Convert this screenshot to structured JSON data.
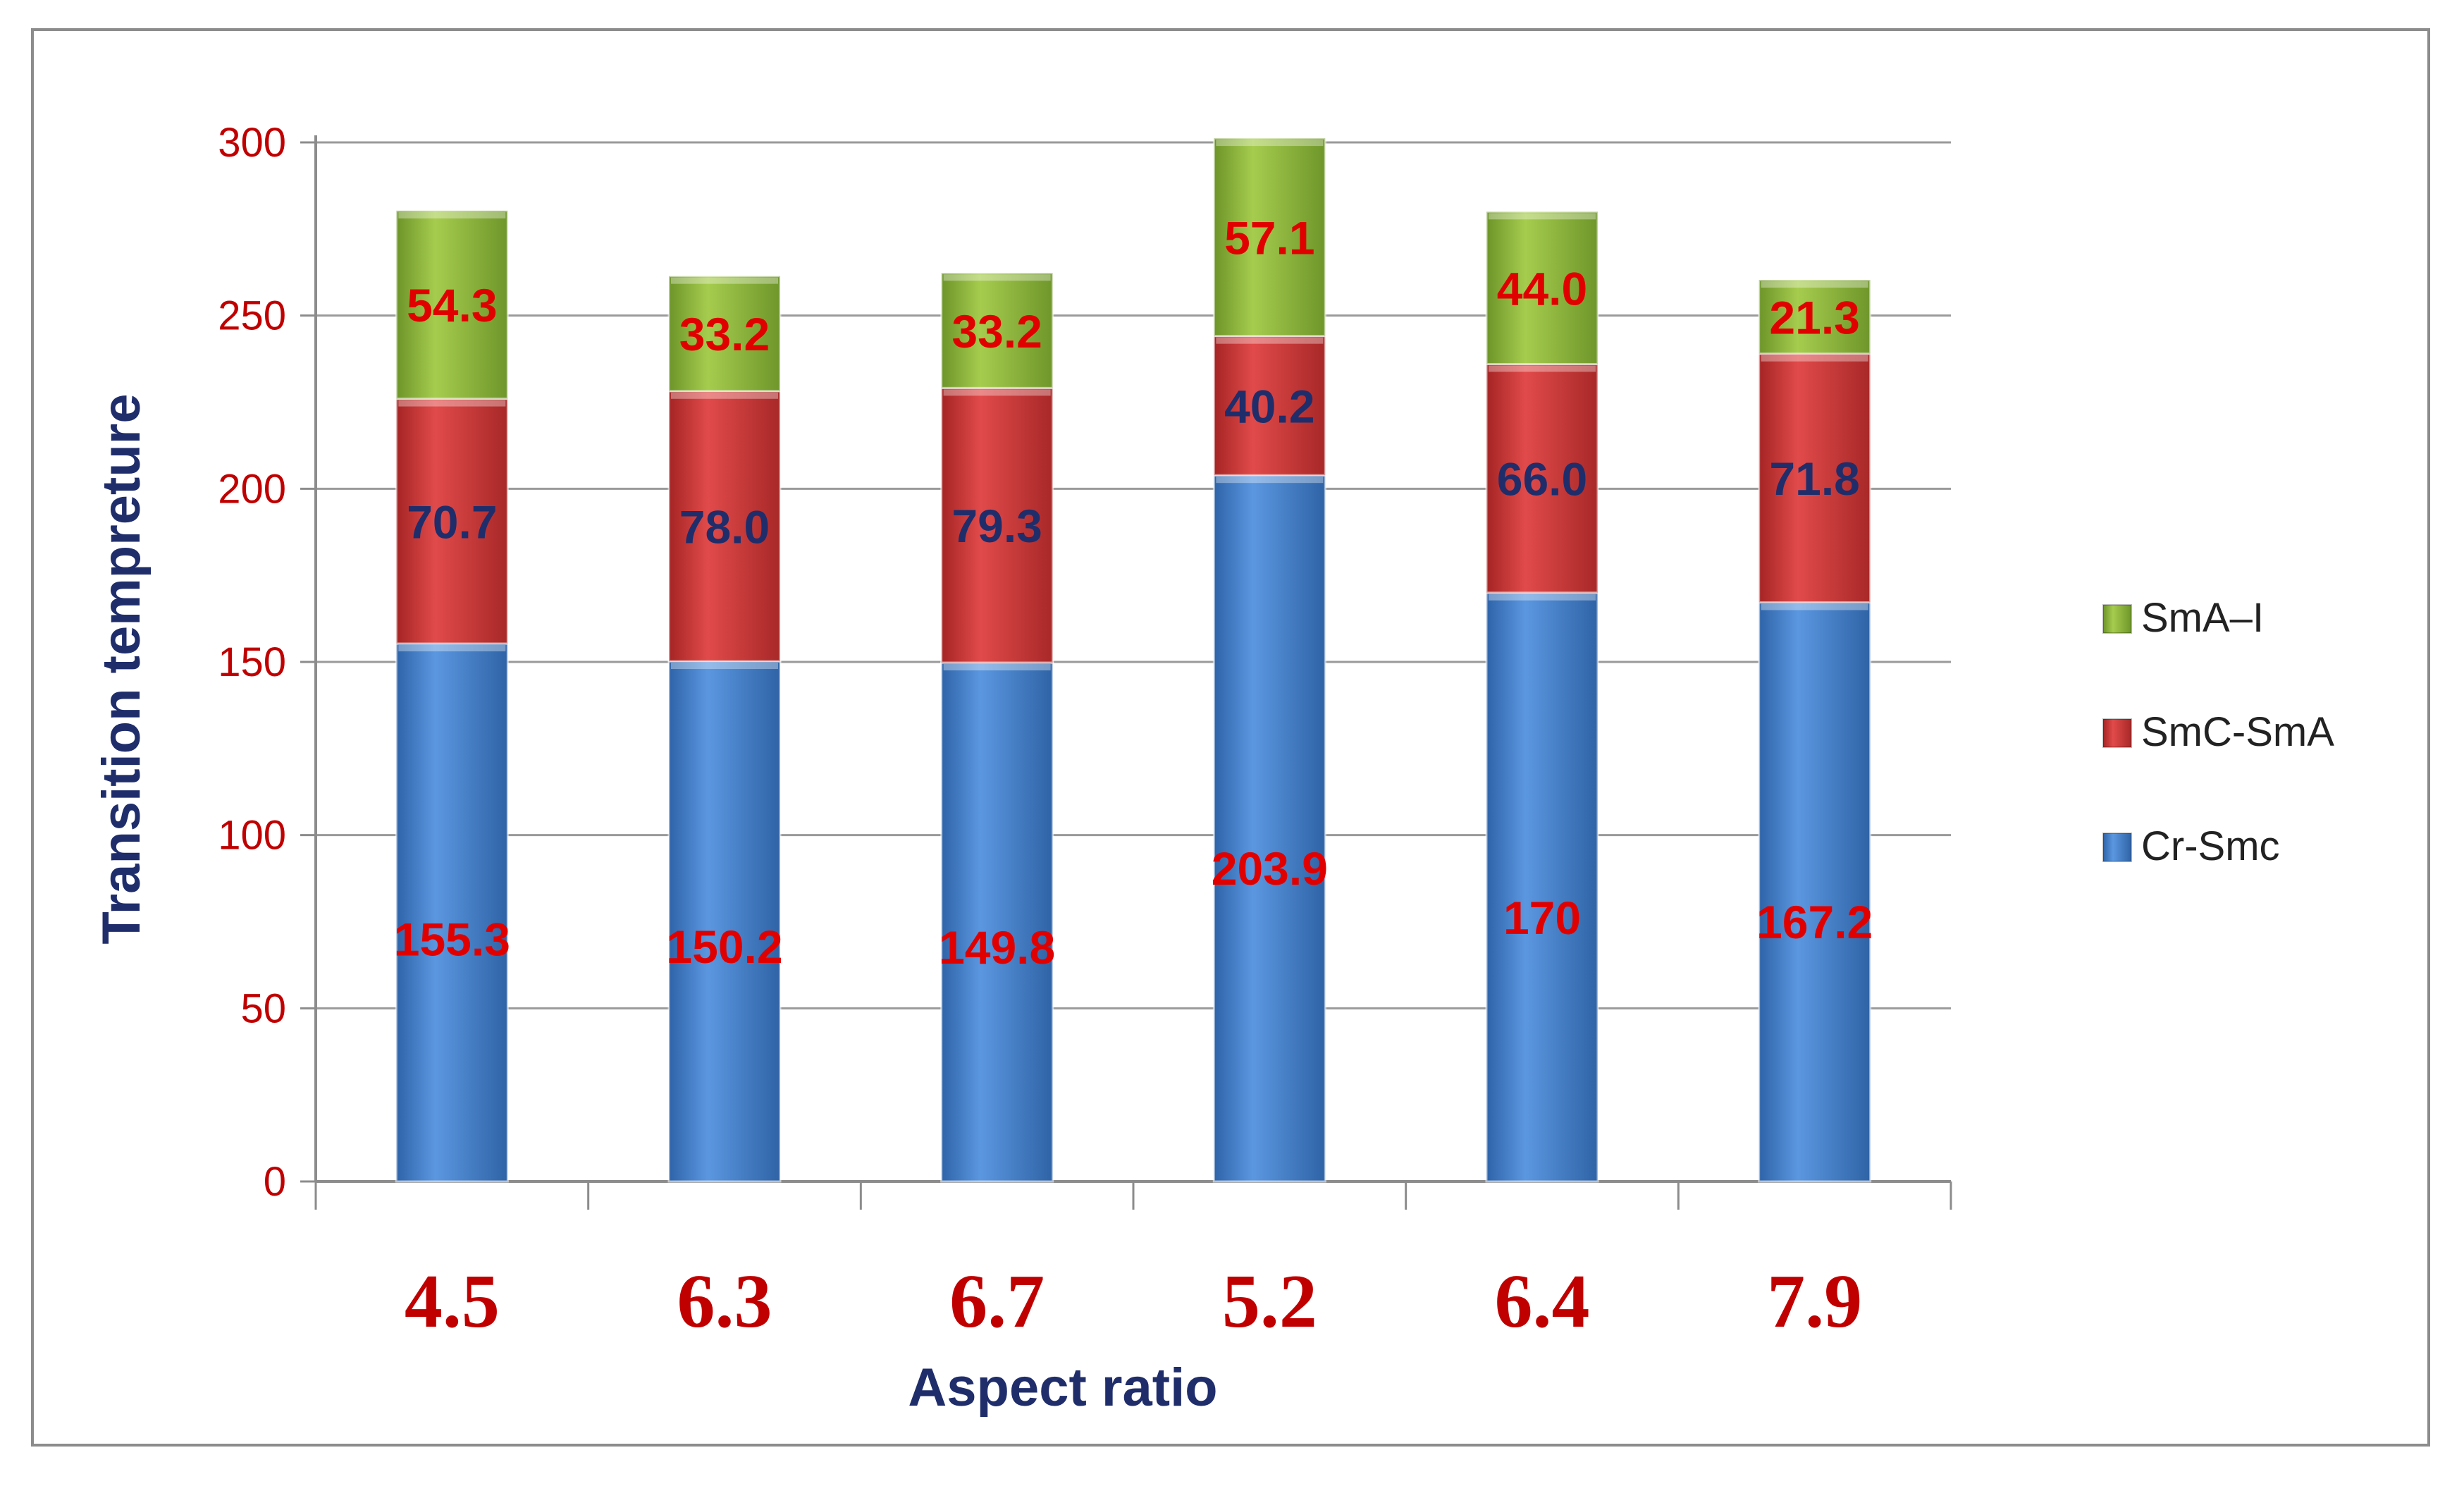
{
  "chart_data": {
    "type": "bar",
    "stacked": true,
    "title": "",
    "xlabel": "Aspect ratio",
    "ylabel": "Transition tempreture",
    "ylim": [
      0,
      300
    ],
    "yticks": [
      0,
      50,
      100,
      150,
      200,
      250,
      300
    ],
    "grid": true,
    "legend_position": "right",
    "categories": [
      "4.5",
      "6.3",
      "6.7",
      "5.2",
      "6.4",
      "7.9"
    ],
    "series": [
      {
        "name": "Cr-Smc",
        "values": [
          155.3,
          150.2,
          149.8,
          203.9,
          170,
          167.2
        ],
        "labels": [
          "155.3",
          "150.2",
          "149.8",
          "203.9",
          "170",
          "167.2"
        ],
        "color": "#4a86d4",
        "label_color": "#e00000"
      },
      {
        "name": "SmC-SmA",
        "values": [
          70.7,
          78.0,
          79.3,
          40.2,
          66.0,
          71.8
        ],
        "labels": [
          "70.7",
          "78.0",
          "79.3",
          "40.2",
          "66.0",
          "71.8"
        ],
        "color": "#d63a3a",
        "label_color": "#1f2d6b"
      },
      {
        "name": "SmA–I",
        "values": [
          54.3,
          33.2,
          33.2,
          57.1,
          44.0,
          21.3
        ],
        "labels": [
          "54.3",
          "33.2",
          "33.2",
          "57.1",
          "44.0",
          "21.3"
        ],
        "color": "#8fbb3a",
        "label_color": "#e00000"
      }
    ],
    "legend_order": [
      "SmA–I",
      "SmC-SmA",
      "Cr-Smc"
    ]
  }
}
